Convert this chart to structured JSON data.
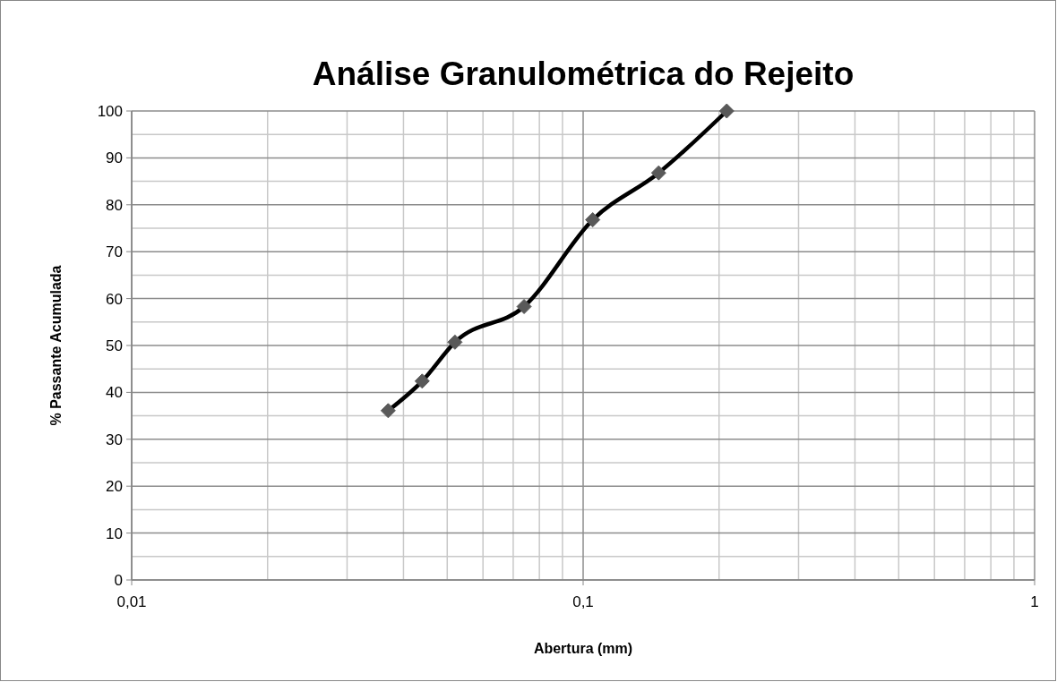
{
  "chart_data": {
    "type": "line",
    "title": "Análise Granulométrica do Rejeito",
    "xlabel": "Abertura (mm)",
    "ylabel": "% Passante Acumulada",
    "x": [
      0.037,
      0.044,
      0.052,
      0.074,
      0.105,
      0.147,
      0.208
    ],
    "series": [
      {
        "color": "#000000",
        "values": [
          36.1,
          42.4,
          50.7,
          58.3,
          76.8,
          86.8,
          100
        ]
      }
    ],
    "log": "x",
    "xlim": [
      0.01,
      1
    ],
    "xticks": [
      {
        "value": 0.01,
        "label": "0,01"
      },
      {
        "value": 0.1,
        "label": "0,1"
      },
      {
        "value": 1,
        "label": "1"
      }
    ],
    "ylim": [
      0,
      100
    ],
    "yticks": [
      0,
      10,
      20,
      30,
      40,
      50,
      60,
      70,
      80,
      90,
      100
    ],
    "grid": true,
    "marker": "diamond",
    "line_style": "solid"
  }
}
